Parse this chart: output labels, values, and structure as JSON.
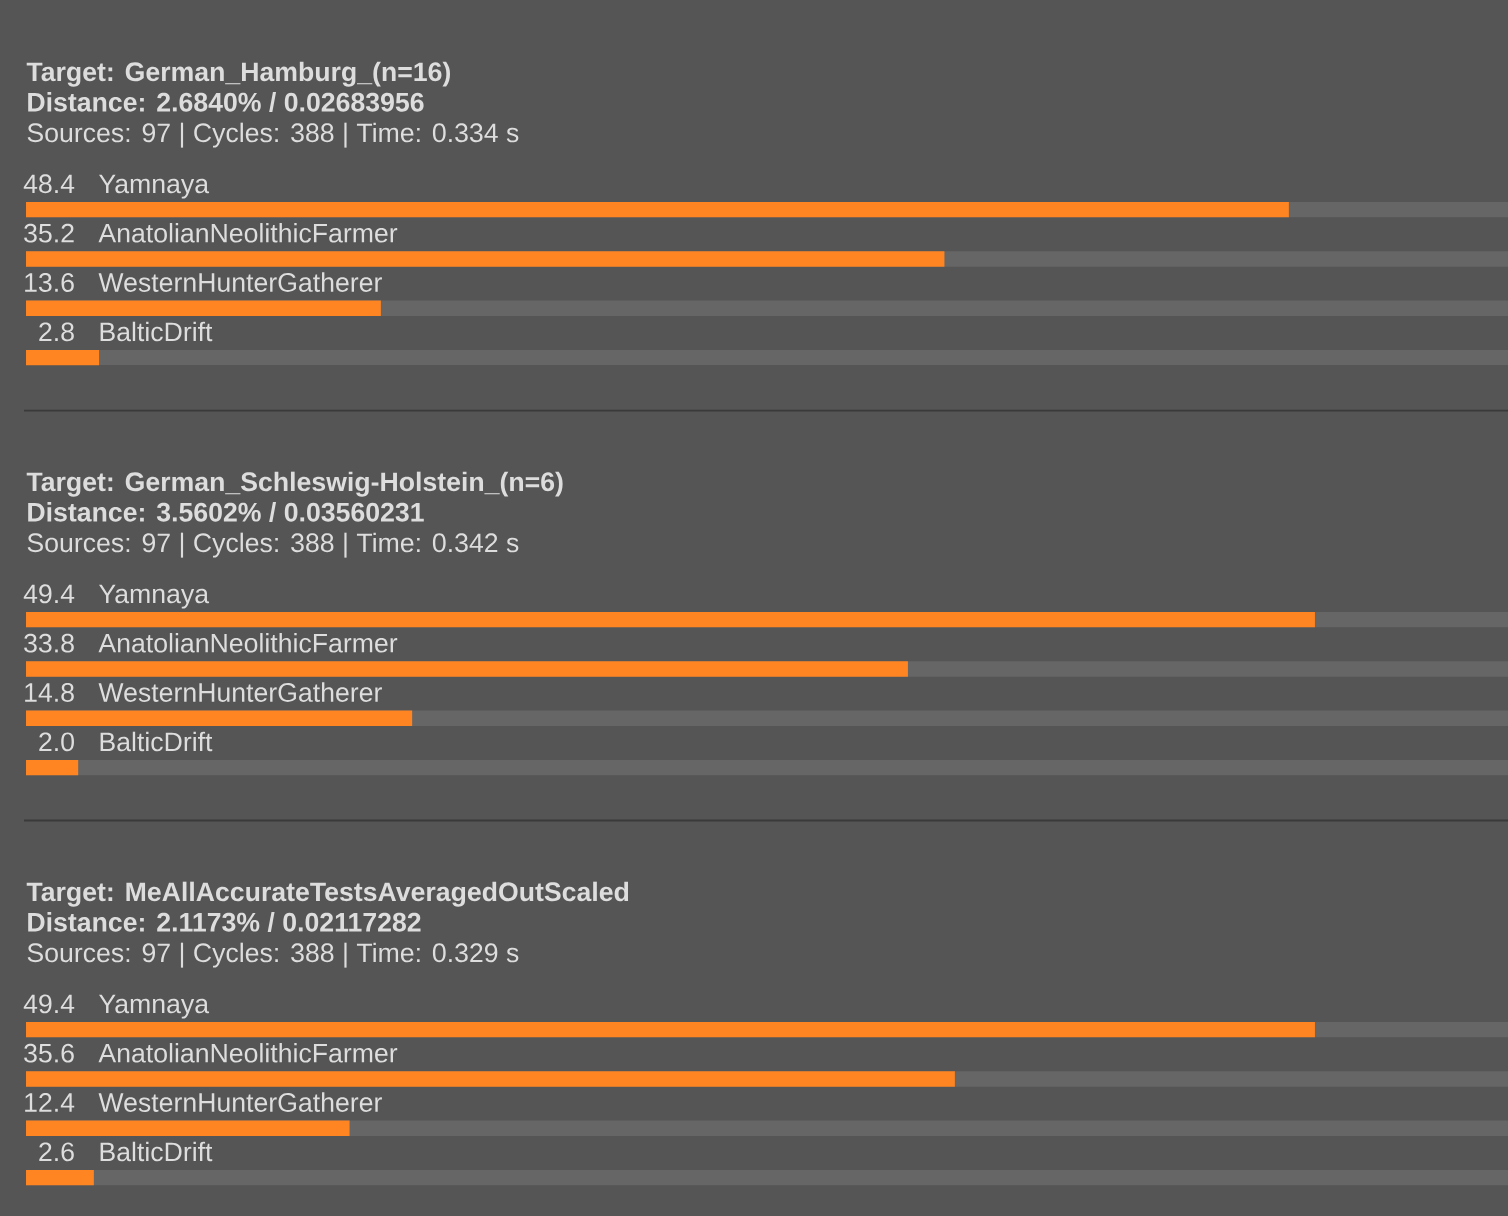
{
  "chart_data": [
    {
      "type": "bar",
      "orientation": "horizontal",
      "title": "Target: German_Hamburg_(n=16)",
      "subtitle": "Distance: 2.6840% / 0.02683956",
      "annotations": [
        "Sources: 97 | Cycles: 388 | Time: 0.334 s"
      ],
      "categories": [
        "Yamnaya",
        "AnatolianNeolithicFarmer",
        "WesternHunterGatherer",
        "BalticDrift"
      ],
      "values": [
        48.4,
        35.2,
        13.6,
        2.8
      ],
      "color": "#ff8522",
      "xlim": [
        0,
        56.8
      ],
      "data_labels": true,
      "tick_labels": "y",
      "grid": "y"
    },
    {
      "type": "bar",
      "orientation": "horizontal",
      "title": "Target: German_Schleswig-Holstein_(n=6)",
      "subtitle": "Distance: 3.5602% / 0.03560231",
      "annotations": [
        "Sources: 97 | Cycles: 388 | Time: 0.342 s"
      ],
      "categories": [
        "Yamnaya",
        "AnatolianNeolithicFarmer",
        "WesternHunterGatherer",
        "BalticDrift"
      ],
      "values": [
        49.4,
        33.8,
        14.8,
        2.0
      ],
      "value_labels": [
        "49.4",
        "33.8",
        "14.8",
        "2.0"
      ],
      "color": "#ff8522",
      "xlim": [
        0,
        56.8
      ],
      "tick_labels": "y",
      "grid": "y"
    },
    {
      "type": "bar",
      "orientation": "horizontal",
      "title": "Target: MeAllAccurateTestsAveragedOutScaled",
      "subtitle": "Distance: 2.1173% / 0.02117282",
      "annotations": [
        "Sources: 97 | Cycles: 388 | Time: 0.329 s"
      ],
      "categories": [
        "Yamnaya",
        "AnatolianNeolithicFarmer",
        "WesternHunterGatherer",
        "BalticDrift"
      ],
      "values": [
        49.4,
        35.6,
        12.4,
        2.6
      ],
      "color": "#ff8522",
      "xlim": [
        0,
        56.8
      ],
      "data_labels": true,
      "tick_labels": "y",
      "grid": "y"
    }
  ]
}
